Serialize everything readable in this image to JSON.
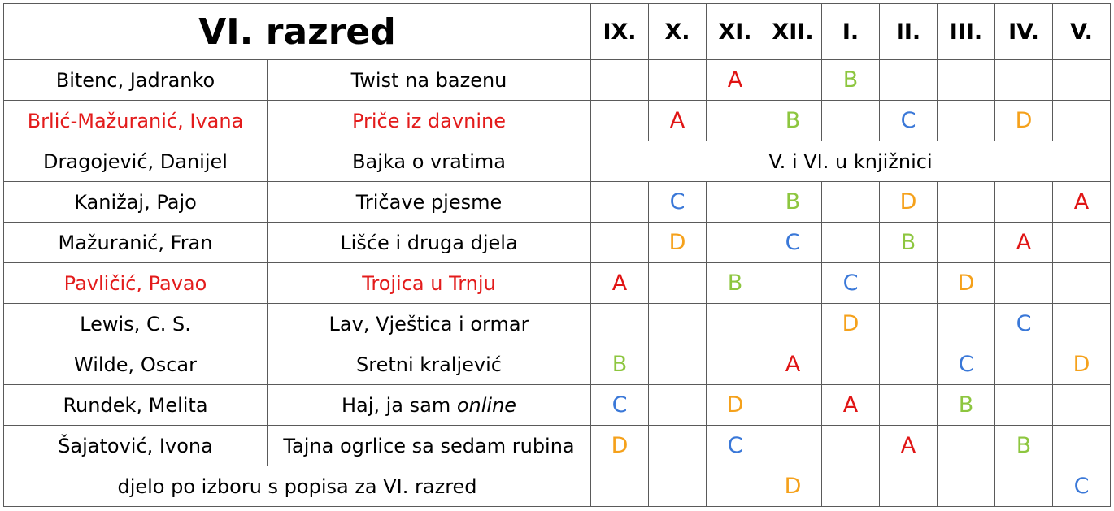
{
  "title": "VI. razred",
  "months": [
    "IX.",
    "X.",
    "XI.",
    "XII.",
    "I.",
    "II.",
    "III.",
    "IV.",
    "V."
  ],
  "grade_colors": {
    "A": "#e01414",
    "B": "#8dc63f",
    "C": "#3a78d8",
    "D": "#f5a11b"
  },
  "highlight_color": "#e31b1b",
  "rows": [
    {
      "author": "Bitenc, Jadranko",
      "book": "Twist na bazenu",
      "highlight": false,
      "grades": [
        "",
        "",
        "A",
        "",
        "B",
        "",
        "",
        "",
        ""
      ]
    },
    {
      "author": "Brlić-Mažuranić, Ivana",
      "book": "Priče iz davnine",
      "highlight": true,
      "grades": [
        "",
        "A",
        "",
        "B",
        "",
        "C",
        "",
        "D",
        ""
      ]
    },
    {
      "author": "Dragojević, Danijel",
      "book": "Bajka o vratima",
      "highlight": false,
      "note": "V. i VI. u knjižnici"
    },
    {
      "author": "Kanižaj, Pajo",
      "book": "Tričave pjesme",
      "highlight": false,
      "grades": [
        "",
        "C",
        "",
        "B",
        "",
        "D",
        "",
        "",
        "A"
      ]
    },
    {
      "author": "Mažuranić, Fran",
      "book": "Lišće i druga djela",
      "highlight": false,
      "grades": [
        "",
        "D",
        "",
        "C",
        "",
        "B",
        "",
        "A",
        ""
      ]
    },
    {
      "author": "Pavličić, Pavao",
      "book": "Trojica u Trnju",
      "highlight": true,
      "grades": [
        "A",
        "",
        "B",
        "",
        "C",
        "",
        "D",
        "",
        ""
      ]
    },
    {
      "author": "Lewis, C. S.",
      "book": "Lav, Vještica i ormar",
      "highlight": false,
      "grades": [
        "",
        "",
        "",
        "",
        "D",
        "",
        "",
        "C",
        ""
      ]
    },
    {
      "author": "Wilde, Oscar",
      "book": "Sretni kraljević",
      "highlight": false,
      "grades": [
        "B",
        "",
        "",
        "A",
        "",
        "",
        "C",
        "",
        "D"
      ]
    },
    {
      "author": "Rundek, Melita",
      "book_prefix": "Haj, ja sam ",
      "book_italic": "online",
      "highlight": false,
      "grades": [
        "C",
        "",
        "D",
        "",
        "A",
        "",
        "B",
        "",
        ""
      ]
    },
    {
      "author": "Šajatović, Ivona",
      "book": "Tajna ogrlice sa sedam rubina",
      "highlight": false,
      "grades": [
        "D",
        "",
        "C",
        "",
        "",
        "A",
        "",
        "B",
        ""
      ]
    }
  ],
  "footer": {
    "label": "djelo po izboru s popisa za VI. razred",
    "grades": [
      "",
      "",
      "",
      "D",
      "",
      "",
      "",
      "",
      "C"
    ]
  }
}
